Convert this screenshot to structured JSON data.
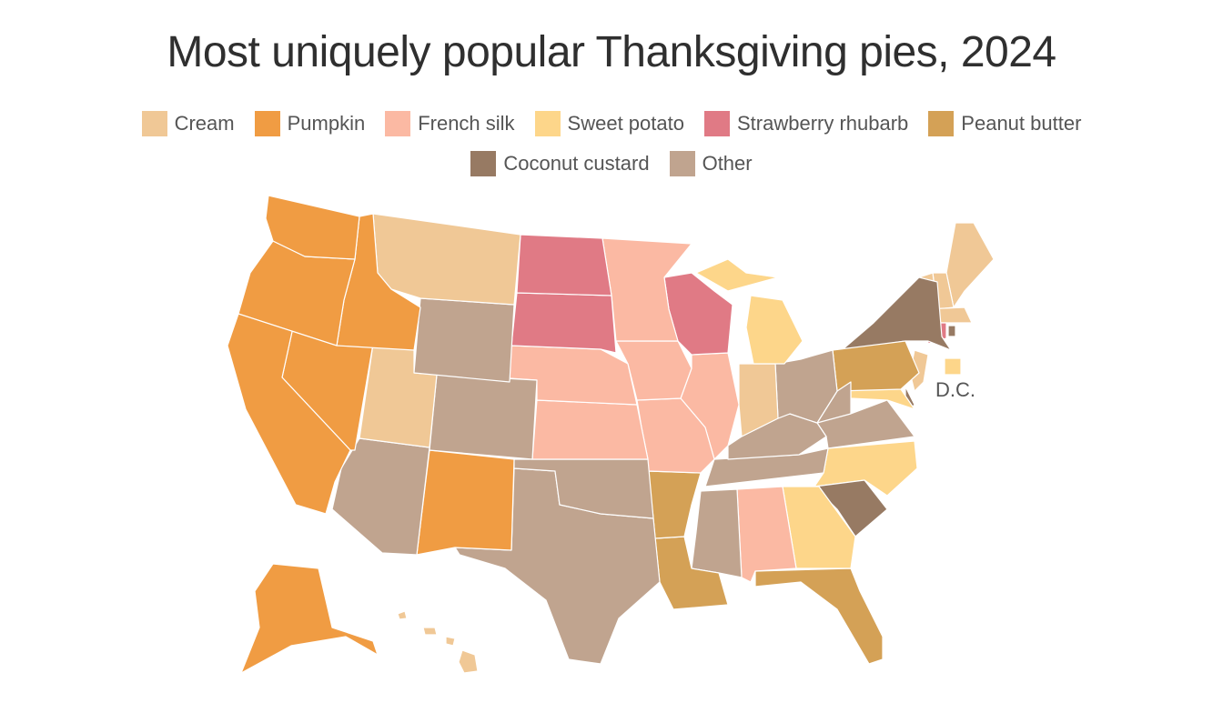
{
  "title": "Most uniquely popular Thanksgiving pies, 2024",
  "legend": [
    {
      "name": "Cream",
      "color": "#f0c896"
    },
    {
      "name": "Pumpkin",
      "color": "#f09c43"
    },
    {
      "name": "French silk",
      "color": "#fbb9a3"
    },
    {
      "name": "Sweet potato",
      "color": "#fdd68a"
    },
    {
      "name": "Strawberry rhubarb",
      "color": "#e07a85"
    },
    {
      "name": "Peanut butter",
      "color": "#d4a156"
    },
    {
      "name": "Coconut custard",
      "color": "#977a63"
    },
    {
      "name": "Other",
      "color": "#c0a48f"
    }
  ],
  "dc_label": "D.C."
}
